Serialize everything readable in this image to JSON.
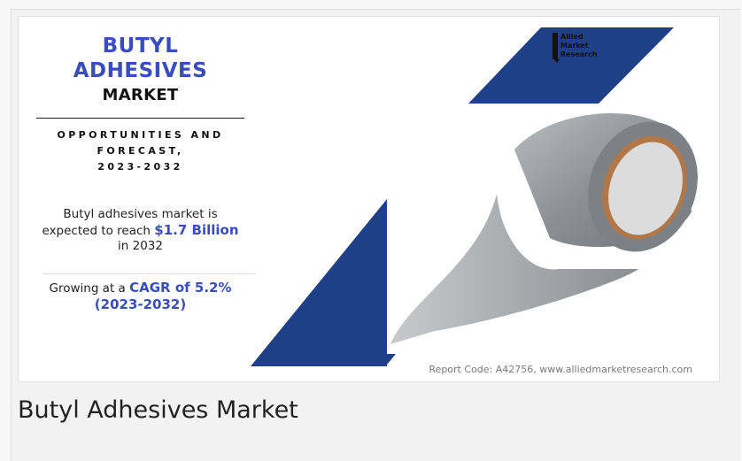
{
  "infographic": {
    "title_line1": "BUTYL",
    "title_line2": "ADHESIVES",
    "title_line3": "MARKET",
    "subtitle_line1": "OPPORTUNITIES AND",
    "subtitle_line2": "FORECAST,",
    "subtitle_line3": "2023-2032",
    "market_text_1": "Butyl adhesives market is",
    "market_text_2": "expected to reach",
    "market_value": "$1.7 Billion",
    "market_text_3": "in 2032",
    "growth_text": "Growing at a",
    "growth_cagr": "CAGR of 5.2%",
    "growth_period": "(2023-2032)",
    "report_code": "Report Code: A42756, www.alliedmarketresearch.com",
    "logo_line1": "Allied",
    "logo_line2": "Market",
    "logo_line3": "Research"
  },
  "caption": "Butyl Adhesives Market",
  "colors": {
    "brand_blue": "#3a4dbf",
    "shape_navy": "#1f3f86"
  }
}
